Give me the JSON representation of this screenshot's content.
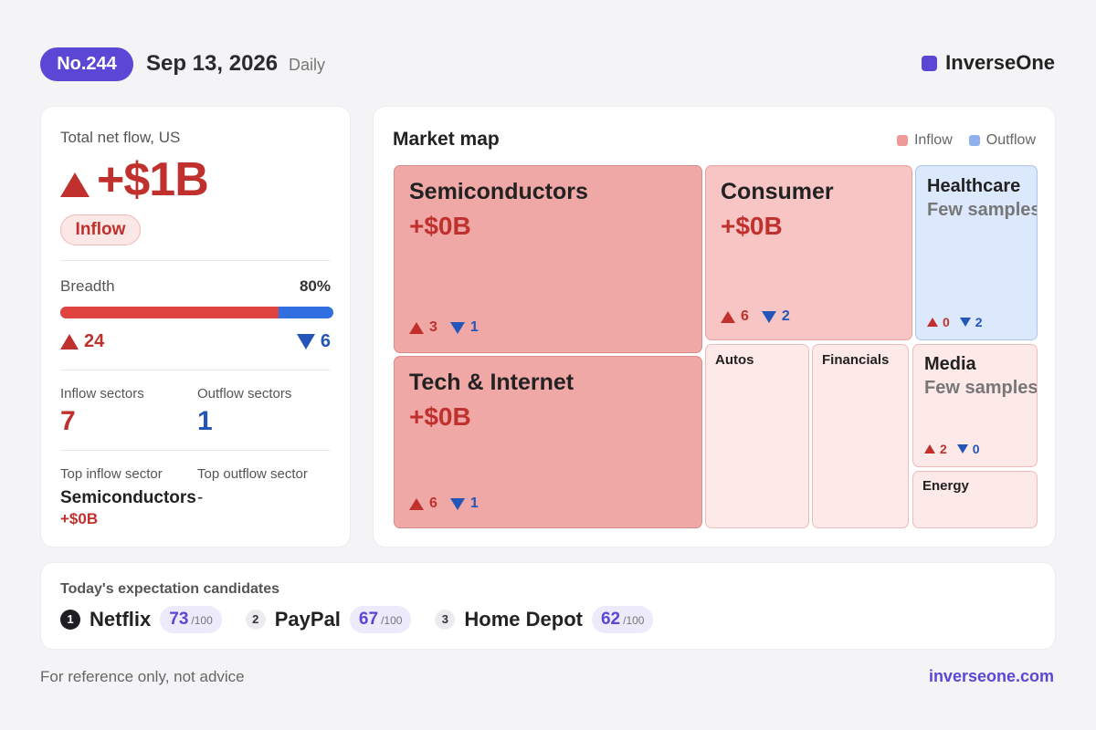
{
  "header": {
    "issue": "No.244",
    "date": "Sep 13, 2026",
    "period": "Daily",
    "brand": "InverseOne"
  },
  "summary": {
    "title": "Total net flow, US",
    "total": "+$1B",
    "direction": "Inflow",
    "breadth_label": "Breadth",
    "breadth_pct": "80%",
    "breadth_fraction": 0.8,
    "up_count": "24",
    "down_count": "6",
    "inflow_sectors_label": "Inflow sectors",
    "inflow_sectors": "7",
    "outflow_sectors_label": "Outflow sectors",
    "outflow_sectors": "1",
    "top_inflow_label": "Top inflow sector",
    "top_outflow_label": "Top outflow sector",
    "top_inflow_name": "Semiconductors",
    "top_inflow_value": "+$0B",
    "top_outflow_name": "-"
  },
  "map": {
    "title": "Market map",
    "legend_inflow": "Inflow",
    "legend_outflow": "Outflow",
    "tiles": {
      "semiconductors": {
        "name": "Semiconductors",
        "value": "+$0B",
        "up": "3",
        "down": "1"
      },
      "tech": {
        "name": "Tech & Internet",
        "value": "+$0B",
        "up": "6",
        "down": "1"
      },
      "consumer": {
        "name": "Consumer",
        "value": "+$0B",
        "up": "6",
        "down": "2"
      },
      "healthcare": {
        "name": "Healthcare",
        "note": "Few samples",
        "up": "0",
        "down": "2"
      },
      "autos": {
        "name": "Autos"
      },
      "financials": {
        "name": "Financials"
      },
      "media": {
        "name": "Media",
        "note": "Few samples",
        "up": "2",
        "down": "0"
      },
      "energy": {
        "name": "Energy"
      }
    }
  },
  "candidates": {
    "title": "Today's expectation candidates",
    "items": [
      {
        "rank": "1",
        "name": "Netflix",
        "score": "73",
        "max": "/100"
      },
      {
        "rank": "2",
        "name": "PayPal",
        "score": "67",
        "max": "/100"
      },
      {
        "rank": "3",
        "name": "Home Depot",
        "score": "62",
        "max": "/100"
      }
    ]
  },
  "footer": {
    "note": "For reference only, not advice",
    "link": "inverseone.com"
  },
  "colors": {
    "brand": "#5b47d6",
    "inflow": "#c0312e",
    "outflow": "#2455b8"
  }
}
